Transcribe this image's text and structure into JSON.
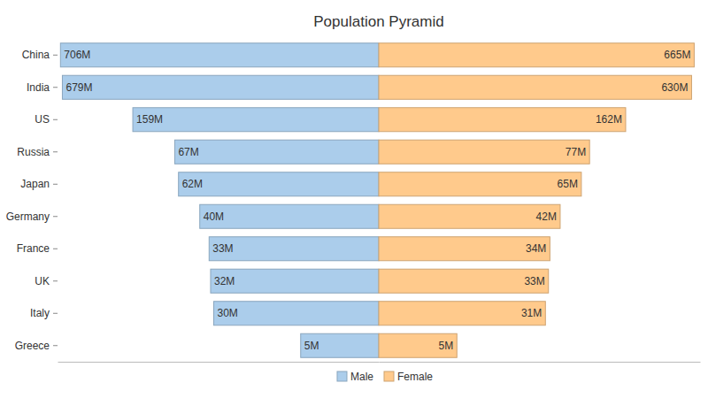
{
  "chart_data": {
    "type": "bar",
    "title": "Population Pyramid",
    "orientation": "horizontal",
    "log": "x",
    "tick_labels": "y",
    "data_labels": true,
    "legend": "bottom",
    "categories": [
      "China",
      "India",
      "US",
      "Russia",
      "Japan",
      "Germany",
      "France",
      "UK",
      "Italy",
      "Greece"
    ],
    "xlim": [
      1,
      750
    ],
    "series": [
      {
        "name": "Male",
        "color": "#abcdeb",
        "values": [
          706,
          679,
          159,
          67,
          62,
          40,
          33,
          32,
          30,
          5
        ],
        "value_labels": [
          "706M",
          "679M",
          "159M",
          "67M",
          "62M",
          "40M",
          "33M",
          "32M",
          "30M",
          "5M"
        ]
      },
      {
        "name": "Female",
        "color": "#ffca8c",
        "values": [
          665,
          630,
          162,
          77,
          65,
          42,
          34,
          33,
          31,
          5
        ],
        "value_labels": [
          "665M",
          "630M",
          "162M",
          "77M",
          "65M",
          "42M",
          "34M",
          "33M",
          "31M",
          "5M"
        ]
      }
    ]
  }
}
